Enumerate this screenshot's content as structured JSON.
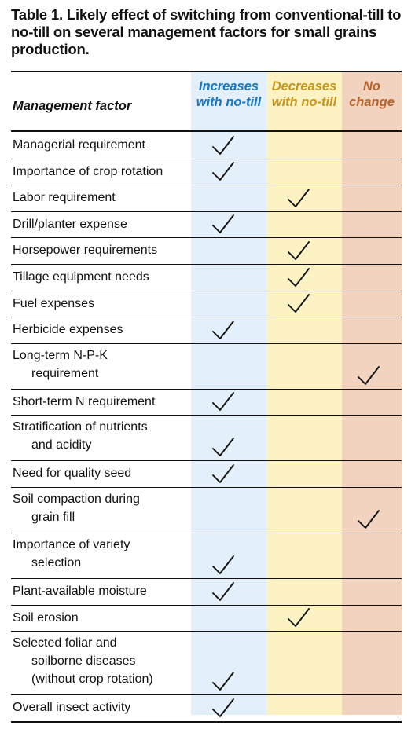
{
  "title": "Table 1. Likely effect of switching from conventional-till to no-till on several management factors for small grains production.",
  "columns": {
    "factor": "Management factor",
    "increases": [
      "Increases",
      "with no-till"
    ],
    "decreases": [
      "Decreases",
      "with no-till"
    ],
    "no_change": [
      "No",
      "change"
    ]
  },
  "colors": {
    "increases": "#1877c5",
    "decreases": "#c6961b",
    "no_change": "#b8602a"
  },
  "check_icon": "checkmark-icon",
  "rows": [
    {
      "lines": [
        "Managerial requirement"
      ],
      "effect": "increases"
    },
    {
      "lines": [
        "Importance of crop rotation"
      ],
      "effect": "increases"
    },
    {
      "lines": [
        "Labor requirement"
      ],
      "effect": "decreases"
    },
    {
      "lines": [
        "Drill/planter expense"
      ],
      "effect": "increases"
    },
    {
      "lines": [
        "Horsepower requirements"
      ],
      "effect": "decreases"
    },
    {
      "lines": [
        "Tillage equipment needs"
      ],
      "effect": "decreases"
    },
    {
      "lines": [
        "Fuel expenses"
      ],
      "effect": "decreases"
    },
    {
      "lines": [
        "Herbicide expenses"
      ],
      "effect": "increases"
    },
    {
      "lines": [
        "Long-term N-P-K",
        "requirement"
      ],
      "effect": "no_change"
    },
    {
      "lines": [
        "Short-term N requirement"
      ],
      "effect": "increases"
    },
    {
      "lines": [
        "Stratification of nutrients",
        "and acidity"
      ],
      "effect": "increases"
    },
    {
      "lines": [
        "Need for quality seed"
      ],
      "effect": "increases"
    },
    {
      "lines": [
        "Soil compaction during",
        "grain fill"
      ],
      "effect": "no_change"
    },
    {
      "lines": [
        "Importance of variety",
        "selection"
      ],
      "effect": "increases"
    },
    {
      "lines": [
        "Plant-available moisture"
      ],
      "effect": "increases"
    },
    {
      "lines": [
        "Soil erosion"
      ],
      "effect": "decreases"
    },
    {
      "lines": [
        "Selected foliar and",
        "soilborne diseases",
        "(without crop rotation)"
      ],
      "effect": "increases"
    },
    {
      "lines": [
        "Overall insect activity"
      ],
      "effect": "increases"
    }
  ]
}
